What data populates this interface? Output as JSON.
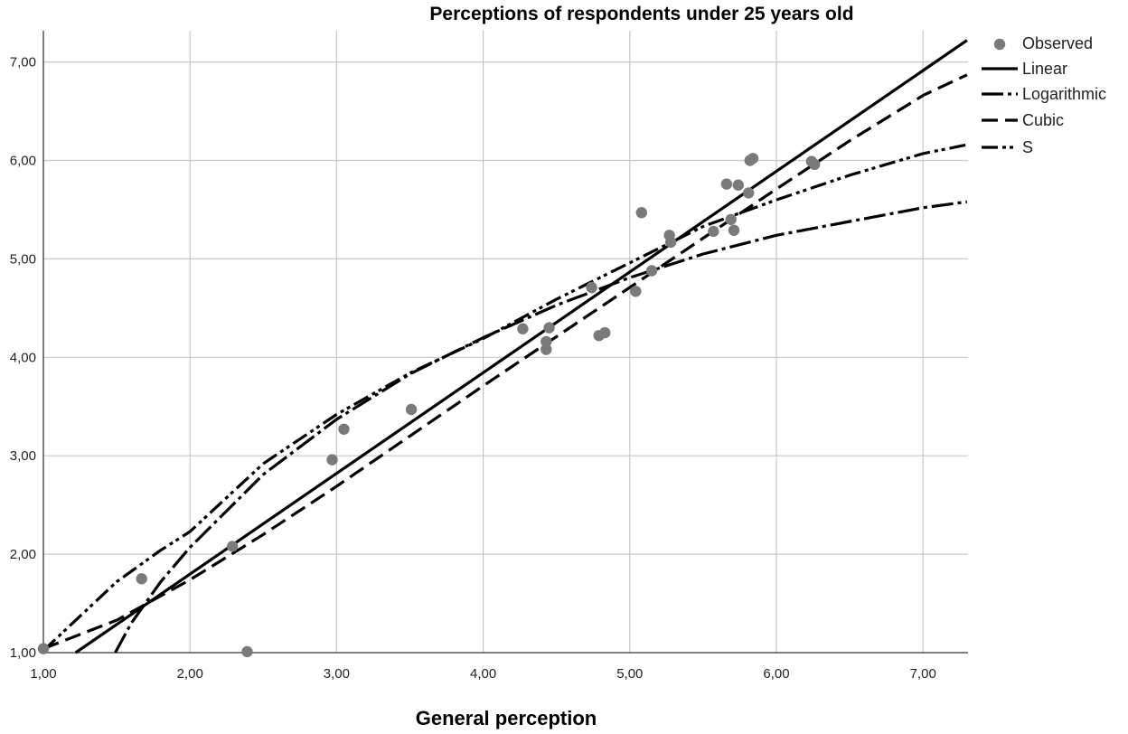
{
  "chart_data": {
    "type": "scatter",
    "title": "Perceptions of respondents under 25 years old",
    "xlabel": "General perception",
    "ylabel": "",
    "xlim": [
      1.0,
      7.3
    ],
    "ylim": [
      1.0,
      7.3
    ],
    "x_ticks": [
      "1,00",
      "2,00",
      "3,00",
      "4,00",
      "5,00",
      "6,00",
      "7,00"
    ],
    "y_ticks": [
      "1,00",
      "2,00",
      "3,00",
      "4,00",
      "5,00",
      "6,00",
      "7,00"
    ],
    "grid": true,
    "legend_position": "right",
    "legend": [
      "Observed",
      "Linear",
      "Logarithmic",
      "Cubic",
      "S"
    ],
    "observed": [
      [
        1.0,
        1.04
      ],
      [
        1.67,
        1.75
      ],
      [
        2.29,
        2.08
      ],
      [
        2.39,
        1.01
      ],
      [
        2.97,
        2.96
      ],
      [
        3.05,
        3.27
      ],
      [
        3.51,
        3.47
      ],
      [
        4.27,
        4.29
      ],
      [
        4.43,
        4.16
      ],
      [
        4.43,
        4.08
      ],
      [
        4.45,
        4.3
      ],
      [
        4.74,
        4.71
      ],
      [
        4.79,
        4.22
      ],
      [
        4.83,
        4.25
      ],
      [
        5.04,
        4.67
      ],
      [
        5.08,
        5.47
      ],
      [
        5.15,
        4.88
      ],
      [
        5.27,
        5.24
      ],
      [
        5.28,
        5.17
      ],
      [
        5.57,
        5.28
      ],
      [
        5.66,
        5.76
      ],
      [
        5.69,
        5.4
      ],
      [
        5.71,
        5.29
      ],
      [
        5.74,
        5.75
      ],
      [
        5.81,
        5.67
      ],
      [
        5.82,
        6.0
      ],
      [
        5.84,
        6.02
      ],
      [
        6.24,
        5.99
      ],
      [
        6.26,
        5.96
      ]
    ],
    "series": [
      {
        "name": "Linear",
        "x": [
          1.22,
          7.3
        ],
        "y": [
          1.0,
          7.22
        ]
      },
      {
        "name": "Logarithmic",
        "x": [
          1.49,
          1.6,
          1.8,
          2.0,
          2.5,
          3.0,
          3.5,
          4.0,
          4.5,
          5.0,
          5.5,
          6.0,
          6.5,
          7.0,
          7.3
        ],
        "y": [
          1.0,
          1.3,
          1.72,
          2.07,
          2.81,
          3.37,
          3.83,
          4.2,
          4.53,
          4.81,
          5.05,
          5.24,
          5.38,
          5.52,
          5.58
        ]
      },
      {
        "name": "Cubic",
        "x": [
          1.0,
          1.5,
          2.0,
          2.5,
          3.0,
          3.5,
          4.0,
          4.5,
          5.0,
          5.5,
          6.0,
          6.5,
          7.0,
          7.3
        ],
        "y": [
          1.04,
          1.33,
          1.74,
          2.2,
          2.69,
          3.2,
          3.71,
          4.21,
          4.71,
          5.21,
          5.71,
          6.2,
          6.66,
          6.87
        ]
      },
      {
        "name": "S",
        "x": [
          1.0,
          1.2,
          1.5,
          1.8,
          2.0,
          2.5,
          3.0,
          3.5,
          4.0,
          4.5,
          5.0,
          5.5,
          6.0,
          6.5,
          7.0,
          7.3
        ],
        "y": [
          1.02,
          1.3,
          1.72,
          2.04,
          2.23,
          2.92,
          3.42,
          3.84,
          4.19,
          4.59,
          4.96,
          5.33,
          5.6,
          5.85,
          6.07,
          6.16
        ]
      }
    ]
  }
}
